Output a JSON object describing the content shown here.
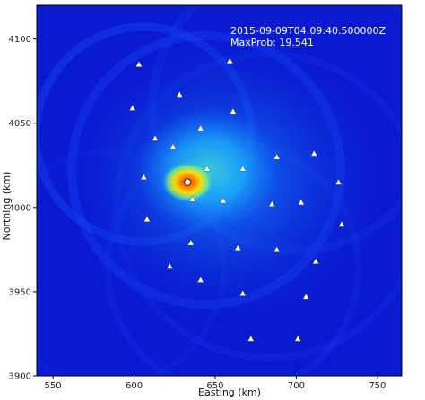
{
  "chart_data": {
    "type": "heatmap",
    "xlabel": "Easting (km)",
    "ylabel": "Northing (km)",
    "xlim": [
      540,
      765
    ],
    "ylim": [
      3900,
      4120
    ],
    "xticks": [
      550,
      600,
      650,
      700,
      750
    ],
    "yticks": [
      3900,
      3950,
      4000,
      4050,
      4100
    ],
    "grid": false,
    "annotations": [
      "2015-09-09T04:09:40.500000Z",
      "MaxProb: 19.541"
    ],
    "colormap": "jet",
    "colors": {
      "background": "#0a1ad0",
      "hotspot": "#ff2000",
      "station_marker": "#ffffff",
      "max_marker": "#ffffff"
    },
    "max_location": {
      "x": 633,
      "y": 4015
    },
    "stations": [
      {
        "x": 603,
        "y": 4085
      },
      {
        "x": 659,
        "y": 4087
      },
      {
        "x": 628,
        "y": 4067
      },
      {
        "x": 599,
        "y": 4059
      },
      {
        "x": 661,
        "y": 4057
      },
      {
        "x": 641,
        "y": 4047
      },
      {
        "x": 613,
        "y": 4041
      },
      {
        "x": 624,
        "y": 4036
      },
      {
        "x": 645,
        "y": 4023
      },
      {
        "x": 667,
        "y": 4023
      },
      {
        "x": 688,
        "y": 4030
      },
      {
        "x": 711,
        "y": 4032
      },
      {
        "x": 606,
        "y": 4018
      },
      {
        "x": 726,
        "y": 4015
      },
      {
        "x": 636,
        "y": 4005
      },
      {
        "x": 655,
        "y": 4004
      },
      {
        "x": 685,
        "y": 4002
      },
      {
        "x": 703,
        "y": 4003
      },
      {
        "x": 608,
        "y": 3993
      },
      {
        "x": 728,
        "y": 3990
      },
      {
        "x": 635,
        "y": 3979
      },
      {
        "x": 664,
        "y": 3976
      },
      {
        "x": 688,
        "y": 3975
      },
      {
        "x": 712,
        "y": 3968
      },
      {
        "x": 622,
        "y": 3965
      },
      {
        "x": 641,
        "y": 3957
      },
      {
        "x": 667,
        "y": 3949
      },
      {
        "x": 706,
        "y": 3947
      },
      {
        "x": 672,
        "y": 3922
      },
      {
        "x": 701,
        "y": 3922
      }
    ]
  }
}
